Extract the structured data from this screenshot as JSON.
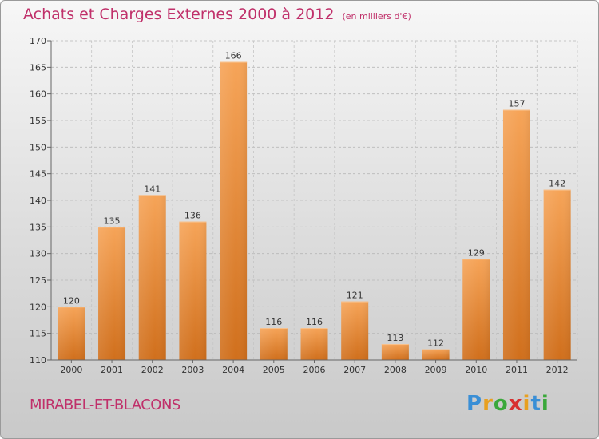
{
  "title": "Achats et Charges Externes 2000 à 2012",
  "unit": "(en milliers d'€)",
  "commune": "MIRABEL-ET-BLACONS",
  "logo": {
    "letters": [
      "P",
      "r",
      "o",
      "x",
      "i",
      "t",
      "i"
    ],
    "colors": [
      "#3a8fd6",
      "#e8a020",
      "#3aa83a",
      "#d83030",
      "#e8a020",
      "#3a8fd6",
      "#3aa83a"
    ]
  },
  "colors": {
    "bar": "#f0913a",
    "bar_dark": "#d4701c",
    "text_accent": "#c0306a"
  },
  "chart_data": {
    "type": "bar",
    "title": "Achats et Charges Externes 2000 à 2012",
    "categories": [
      "2000",
      "2001",
      "2002",
      "2003",
      "2004",
      "2005",
      "2006",
      "2007",
      "2008",
      "2009",
      "2010",
      "2011",
      "2012"
    ],
    "values": [
      120,
      135,
      141,
      136,
      166,
      116,
      116,
      121,
      113,
      112,
      129,
      157,
      142
    ],
    "ylim": [
      110,
      170
    ],
    "yticks": [
      110,
      115,
      120,
      125,
      130,
      135,
      140,
      145,
      150,
      155,
      160,
      165,
      170
    ],
    "grid": true
  }
}
